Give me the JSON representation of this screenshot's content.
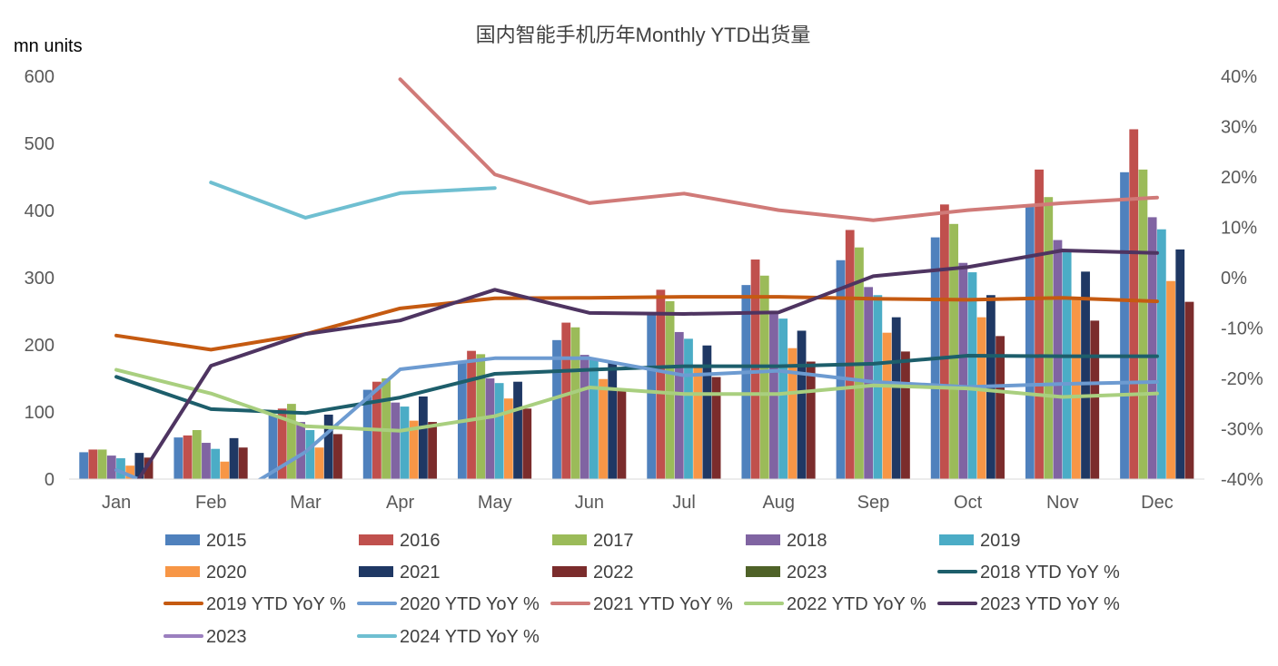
{
  "chart_data": {
    "type": "bar",
    "title": "国内智能手机历年Monthly YTD出货量",
    "ylabel": "mn units",
    "ylim": [
      0,
      600
    ],
    "y_ticks": [
      "0",
      "100",
      "200",
      "300",
      "400",
      "500",
      "600"
    ],
    "y2lim": [
      -40,
      40
    ],
    "y2_ticks": [
      "-40%",
      "-30%",
      "-20%",
      "-10%",
      "0%",
      "10%",
      "20%",
      "30%",
      "40%"
    ],
    "categories": [
      "Jan",
      "Feb",
      "Mar",
      "Apr",
      "May",
      "Jun",
      "Jul",
      "Aug",
      "Sep",
      "Oct",
      "Nov",
      "Dec"
    ],
    "grid": false,
    "legend_position": "bottom",
    "bar_series": [
      {
        "name": "2015",
        "color": "#4f81bd",
        "values": [
          40,
          62,
          96,
          133,
          173,
          207,
          248,
          289,
          326,
          360,
          407,
          457
        ]
      },
      {
        "name": "2016",
        "color": "#c0504d",
        "values": [
          44,
          65,
          105,
          145,
          191,
          233,
          282,
          327,
          371,
          409,
          461,
          521
        ]
      },
      {
        "name": "2017",
        "color": "#9bbb59",
        "values": [
          44,
          73,
          112,
          150,
          186,
          226,
          265,
          303,
          345,
          380,
          420,
          461
        ]
      },
      {
        "name": "2018",
        "color": "#8064a2",
        "values": [
          35,
          54,
          85,
          114,
          150,
          185,
          219,
          250,
          286,
          322,
          356,
          390
        ]
      },
      {
        "name": "2019",
        "color": "#4bacc6",
        "values": [
          31,
          45,
          73,
          108,
          143,
          180,
          209,
          239,
          274,
          308,
          340,
          372
        ]
      },
      {
        "name": "2020",
        "color": "#f79646",
        "values": [
          20,
          26,
          47,
          87,
          120,
          149,
          166,
          195,
          218,
          241,
          270,
          295
        ]
      },
      {
        "name": "2021",
        "color": "#1f3864",
        "values": [
          39,
          61,
          96,
          123,
          145,
          173,
          199,
          221,
          241,
          274,
          309,
          342
        ]
      },
      {
        "name": "2022",
        "color": "#7b2c2c",
        "values": [
          32,
          47,
          67,
          85,
          105,
          133,
          152,
          175,
          190,
          213,
          236,
          264
        ]
      },
      {
        "name": "2023",
        "color": "#4f6228",
        "values": []
      }
    ],
    "line_series": [
      {
        "name": "2018 YTD YoY %",
        "color": "#1d5e6b",
        "values": [
          -19.7,
          -26.1,
          -26.9,
          -23.8,
          -19.1,
          -18.3,
          -17.6,
          -17.6,
          -17.1,
          -15.5,
          -15.6,
          -15.6
        ]
      },
      {
        "name": "2019 YTD YoY %",
        "color": "#c55a11",
        "values": [
          -11.5,
          -14.3,
          -11.2,
          -6.1,
          -4.1,
          -4.0,
          -3.8,
          -3.8,
          -4.2,
          -4.4,
          -4.0,
          -4.7
        ]
      },
      {
        "name": "2020 YTD YoY %",
        "color": "#6d9bd1",
        "values": [
          -38.2,
          -46.0,
          -34.6,
          -18.2,
          -16.0,
          -16.0,
          -19.4,
          -18.5,
          -20.7,
          -21.7,
          -21.1,
          -20.7
        ]
      },
      {
        "name": "2021 YTD YoY %",
        "color": "#d07a78",
        "values": [
          null,
          null,
          null,
          39.4,
          20.5,
          14.8,
          16.7,
          13.4,
          11.4,
          13.4,
          14.8,
          15.9
        ]
      },
      {
        "name": "2022 YTD YoY %",
        "color": "#a9cf7f",
        "values": [
          -18.3,
          -23.0,
          -29.5,
          -30.4,
          -27.5,
          -21.8,
          -23.1,
          -23.1,
          -21.4,
          -22.0,
          -23.7,
          -23.0
        ]
      },
      {
        "name": "2023 YTD YoY %",
        "color": "#4e3461",
        "values": [
          -47.0,
          -17.5,
          -11.2,
          -8.5,
          -2.4,
          -7.0,
          -7.2,
          -6.9,
          0.3,
          2.1,
          5.4,
          4.9
        ]
      },
      {
        "name": "2023",
        "color": "#9b7fbf",
        "values": []
      },
      {
        "name": "2024 YTD YoY %",
        "color": "#6fbfd1",
        "values": [
          null,
          18.9,
          11.9,
          16.8,
          17.8,
          null,
          null,
          null,
          null,
          null,
          null,
          null
        ]
      }
    ]
  }
}
